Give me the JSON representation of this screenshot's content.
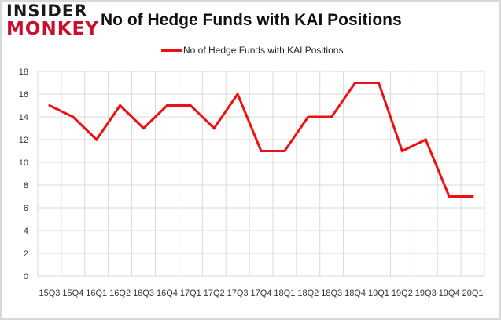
{
  "brand": {
    "line1": "INSIDER",
    "line2": "MONKEY"
  },
  "colors": {
    "series": "#ee1111",
    "grid": "#d9d9d9",
    "logo_red": "#c8102e"
  },
  "chart_data": {
    "type": "line",
    "title": "No of Hedge Funds with KAI Positions",
    "legend_position": "top",
    "grid": true,
    "xlabel": "",
    "ylabel": "",
    "ylim": [
      0,
      18
    ],
    "yticks": [
      0,
      2,
      4,
      6,
      8,
      10,
      12,
      14,
      16,
      18
    ],
    "categories": [
      "2015Q3",
      "2015Q4",
      "2016Q1",
      "2016Q2",
      "2016Q3",
      "2016Q4",
      "2017Q1",
      "2017Q2",
      "2017Q3",
      "2017Q4",
      "2018Q1",
      "2018Q2",
      "2018Q3",
      "2018Q4",
      "2019Q1",
      "2019Q2",
      "2019Q3",
      "2019Q4",
      "2020Q1"
    ],
    "tick_labels": [
      "15Q3",
      "15Q4",
      "16Q1",
      "16Q2",
      "16Q3",
      "16Q4",
      "17Q1",
      "17Q2",
      "17Q3",
      "17Q4",
      "18Q1",
      "18Q2",
      "18Q3",
      "18Q4",
      "19Q1",
      "19Q2",
      "19Q3",
      "19Q4",
      "20Q1"
    ],
    "series": [
      {
        "name": "No of Hedge Funds with KAI Positions",
        "values": [
          15,
          14,
          12,
          15,
          13,
          15,
          15,
          13,
          16,
          11,
          11,
          14,
          14,
          17,
          17,
          11,
          12,
          7,
          7
        ]
      }
    ]
  }
}
